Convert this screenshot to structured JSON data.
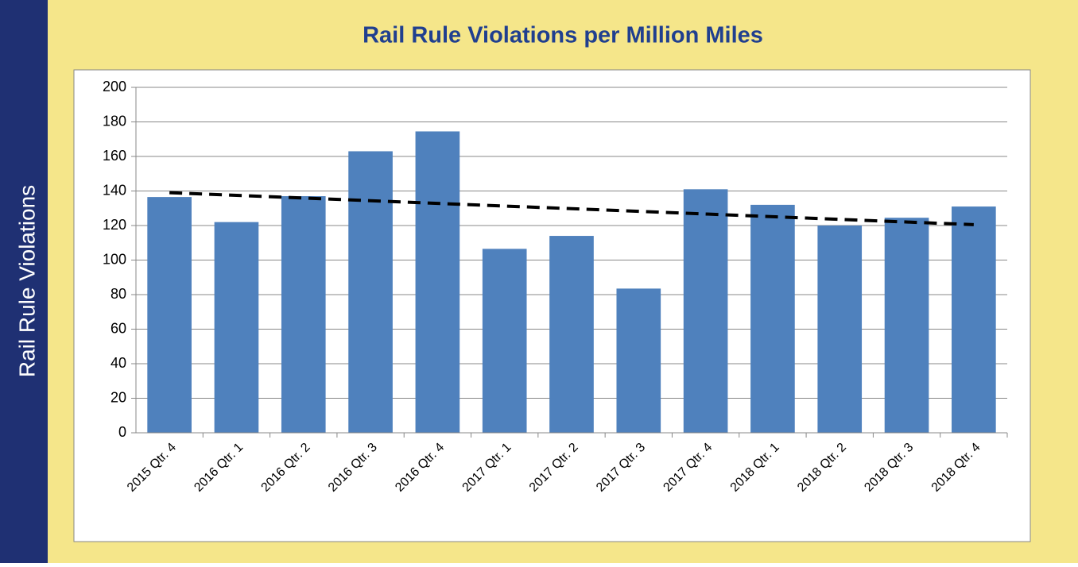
{
  "sidebar_label": "Rail Rule Violations",
  "chart_data": {
    "type": "bar",
    "title": "Rail Rule Violations per Million Miles",
    "categories": [
      "2015 Qtr. 4",
      "2016 Qtr. 1",
      "2016 Qtr. 2",
      "2016 Qtr. 3",
      "2016 Qtr. 4",
      "2017 Qtr. 1",
      "2017 Qtr. 2",
      "2017 Qtr. 3",
      "2017 Qtr. 4",
      "2018 Qtr. 1",
      "2018 Qtr. 2",
      "2018 Qtr. 3",
      "2018 Qtr. 4"
    ],
    "values": [
      136.5,
      122,
      137,
      163,
      174.5,
      106.5,
      114,
      83.5,
      141,
      132,
      120,
      124.5,
      131
    ],
    "color": "#4f81bd",
    "trendline": {
      "values": [
        139,
        120.5
      ],
      "color": "#000000",
      "dashed": true
    },
    "ylim": [
      0,
      200
    ],
    "yticks": [
      0,
      20,
      40,
      60,
      80,
      100,
      120,
      140,
      160,
      180,
      200
    ],
    "grid": true
  }
}
